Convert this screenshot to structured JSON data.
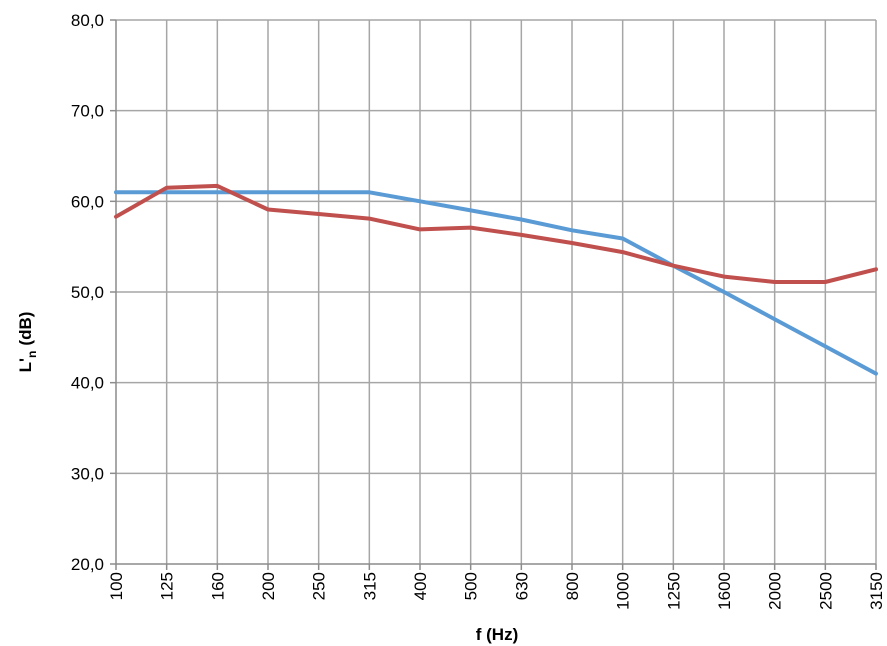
{
  "chart_data": {
    "type": "line",
    "title": "",
    "xlabel": "f (Hz)",
    "ylabel_main": "L'",
    "ylabel_sub": "n",
    "ylabel_unit": "(dB)",
    "categories": [
      "100",
      "125",
      "160",
      "200",
      "250",
      "315",
      "400",
      "500",
      "630",
      "800",
      "1000",
      "1250",
      "1600",
      "2000",
      "2500",
      "3150"
    ],
    "ylim": [
      20,
      80
    ],
    "yticks": [
      20,
      30,
      40,
      50,
      60,
      70,
      80
    ],
    "ytick_labels": [
      "20,0",
      "30,0",
      "40,0",
      "50,0",
      "60,0",
      "70,0",
      "80,0"
    ],
    "grid": true,
    "legend": "none",
    "series": [
      {
        "color": "#5b9bd5",
        "values": [
          61,
          61,
          61,
          61,
          61,
          61,
          60,
          59,
          58,
          56.8,
          55.9,
          52.9,
          50,
          47,
          44,
          41
        ]
      },
      {
        "color": "#c0504d",
        "values": [
          58.3,
          61.5,
          61.7,
          59.1,
          58.6,
          58.1,
          56.9,
          57.1,
          56.3,
          55.4,
          54.4,
          52.9,
          51.7,
          51.1,
          51.1,
          52.5
        ]
      }
    ]
  }
}
